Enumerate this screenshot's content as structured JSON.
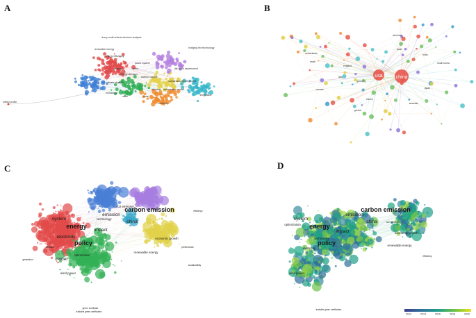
{
  "panels": [
    {
      "id": "A",
      "letter": "A",
      "type": "cluster-map",
      "labels": [
        {
          "text": "united profile"
        },
        {
          "text": "fuzzy multi-criteria decision analysis"
        },
        {
          "text": "renewable energy"
        },
        {
          "text": "energy efficiency"
        },
        {
          "text": "power system"
        },
        {
          "text": "energy demand"
        },
        {
          "text": "carbon capture"
        },
        {
          "text": "optimization model"
        },
        {
          "text": "climate change"
        },
        {
          "text": "life cycle assessment"
        },
        {
          "text": "bridging the technology"
        },
        {
          "text": "sustainable development"
        },
        {
          "text": "energy"
        },
        {
          "text": "china"
        },
        {
          "text": "demand"
        },
        {
          "text": "electricity"
        },
        {
          "text": "solar"
        },
        {
          "text": "wind"
        },
        {
          "text": "emissions"
        },
        {
          "text": "integration"
        }
      ],
      "colors": [
        "#e04848",
        "#3f7fd6",
        "#2fae54",
        "#e3d24a",
        "#b480e0",
        "#36b7c9",
        "#f08a2a"
      ]
    },
    {
      "id": "B",
      "letter": "B",
      "type": "country-network",
      "labels": [
        {
          "text": "china"
        },
        {
          "text": "usa"
        },
        {
          "text": "germany"
        },
        {
          "text": "england"
        },
        {
          "text": "italy"
        },
        {
          "text": "spain"
        },
        {
          "text": "netherlands"
        },
        {
          "text": "australia"
        },
        {
          "text": "japan"
        },
        {
          "text": "india"
        },
        {
          "text": "canada"
        },
        {
          "text": "france"
        },
        {
          "text": "south korea"
        },
        {
          "text": "brazil"
        },
        {
          "text": "denmark"
        },
        {
          "text": "greece"
        }
      ]
    },
    {
      "id": "C",
      "letter": "C",
      "type": "keyword-cluster-map",
      "labels": [
        {
          "text": "carbon emission",
          "size": "lg"
        },
        {
          "text": "policy",
          "size": "lg"
        },
        {
          "text": "energy",
          "size": "lg"
        },
        {
          "text": "system",
          "size": "md"
        },
        {
          "text": "china",
          "size": "md"
        },
        {
          "text": "impact",
          "size": "md"
        },
        {
          "text": "emission",
          "size": "md"
        },
        {
          "text": "model",
          "size": "md"
        },
        {
          "text": "electricity",
          "size": "md"
        },
        {
          "text": "economic growth",
          "size": "sm"
        },
        {
          "text": "co2 emission",
          "size": "sm"
        },
        {
          "text": "technology",
          "size": "sm"
        },
        {
          "text": "renewable energy",
          "size": "sm"
        },
        {
          "text": "wind power",
          "size": "sm"
        },
        {
          "text": "optimization",
          "size": "sm"
        },
        {
          "text": "green certificate",
          "size": "xs"
        },
        {
          "text": "performance",
          "size": "xs"
        },
        {
          "text": "efficiency",
          "size": "xs"
        },
        {
          "text": "sustainability",
          "size": "xs"
        },
        {
          "text": "demand",
          "size": "xs"
        },
        {
          "text": "generation",
          "size": "xs"
        },
        {
          "text": "tradable green certificates",
          "size": "xs"
        }
      ]
    },
    {
      "id": "D",
      "letter": "D",
      "type": "keyword-overlay-map",
      "labels": [
        {
          "text": "carbon emission",
          "size": "lg"
        },
        {
          "text": "policy",
          "size": "lg"
        },
        {
          "text": "energy",
          "size": "lg"
        },
        {
          "text": "system",
          "size": "md"
        },
        {
          "text": "china",
          "size": "md"
        },
        {
          "text": "impact",
          "size": "md"
        },
        {
          "text": "emission",
          "size": "md"
        },
        {
          "text": "economic growth",
          "size": "sm"
        },
        {
          "text": "technology",
          "size": "sm"
        },
        {
          "text": "electricity",
          "size": "sm"
        },
        {
          "text": "wind power",
          "size": "sm"
        },
        {
          "text": "optimization",
          "size": "sm"
        },
        {
          "text": "renewable energy",
          "size": "sm"
        },
        {
          "text": "co2 emission",
          "size": "xs"
        },
        {
          "text": "efficiency",
          "size": "xs"
        },
        {
          "text": "tradable green certificates",
          "size": "xs"
        }
      ],
      "colorbar": {
        "ticks": [
          "2012",
          "2014",
          "2016",
          "2018",
          "2020"
        ],
        "colors": [
          "#3b3f8f",
          "#2f6f9a",
          "#1f9e88",
          "#6cc24a",
          "#e6e21c"
        ]
      }
    }
  ]
}
